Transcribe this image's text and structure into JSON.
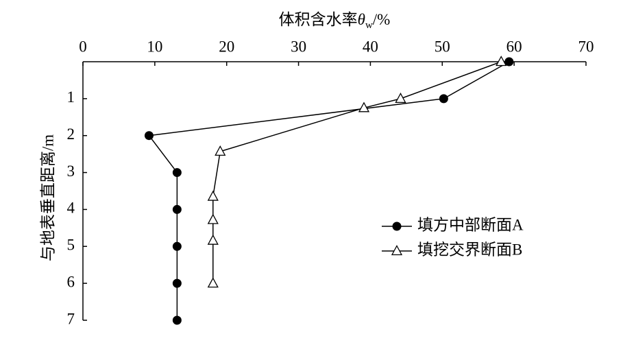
{
  "chart_data": {
    "type": "line",
    "x_label": [
      "体积含水率",
      "θ",
      "w",
      "/%"
    ],
    "y_label": "与地表垂直距离/m",
    "xlim": [
      0,
      70
    ],
    "xticks": [
      0,
      10,
      20,
      30,
      40,
      50,
      60,
      70
    ],
    "ylim": [
      0,
      7
    ],
    "yticks": [
      1,
      2,
      3,
      4,
      5,
      6,
      7
    ],
    "y_inverted": true,
    "x_axis_position": "top",
    "legend_position": "right",
    "series": [
      {
        "name": "填方中部断面A",
        "color": "#000000",
        "marker": "circle",
        "x": [
          59.3,
          50.2,
          9.2,
          13.1,
          13.1,
          13.1,
          13.1,
          13.1
        ],
        "values": [
          0,
          1.0,
          2.0,
          3.0,
          4.0,
          5.0,
          6.0,
          7.0
        ]
      },
      {
        "name": "填挖交界断面B",
        "color": "#000000",
        "marker": "triangle",
        "x": [
          58.2,
          44.2,
          39.1,
          19.1,
          18.1,
          18.1,
          18.1,
          18.1
        ],
        "values": [
          0,
          1.0,
          1.25,
          2.43,
          3.65,
          4.28,
          4.84,
          6.0
        ]
      }
    ]
  }
}
